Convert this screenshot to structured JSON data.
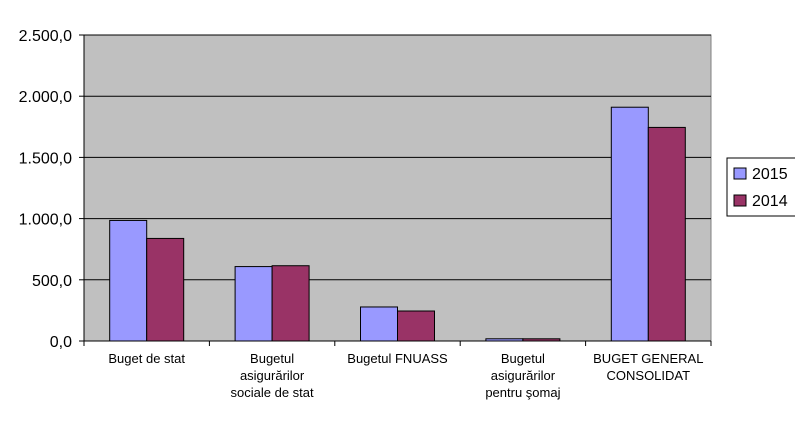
{
  "chart_data": {
    "type": "bar",
    "categories": [
      [
        "Buget de stat"
      ],
      [
        "Bugetul",
        "asigurărilor",
        "sociale de stat"
      ],
      [
        "Bugetul FNUASS"
      ],
      [
        "Bugetul",
        "asigurărilor",
        "pentru şomaj"
      ],
      [
        "BUGET GENERAL",
        "CONSOLIDAT"
      ]
    ],
    "series": [
      {
        "name": "2015",
        "color": "#9999ff",
        "values": [
          985,
          608,
          278,
          18,
          1910
        ]
      },
      {
        "name": "2014",
        "color": "#993366",
        "values": [
          838,
          615,
          245,
          18,
          1745
        ]
      }
    ],
    "ylim": [
      0,
      2500
    ],
    "yticks": [
      {
        "value": 0,
        "label": "0,0"
      },
      {
        "value": 500,
        "label": "500,0"
      },
      {
        "value": 1000,
        "label": "1.000,0"
      },
      {
        "value": 1500,
        "label": "1.500,0"
      },
      {
        "value": 2000,
        "label": "2.000,0"
      },
      {
        "value": 2500,
        "label": "2.500,0"
      }
    ],
    "grid": true,
    "plot_background": "#c0c0c0",
    "legend_position": "right"
  }
}
